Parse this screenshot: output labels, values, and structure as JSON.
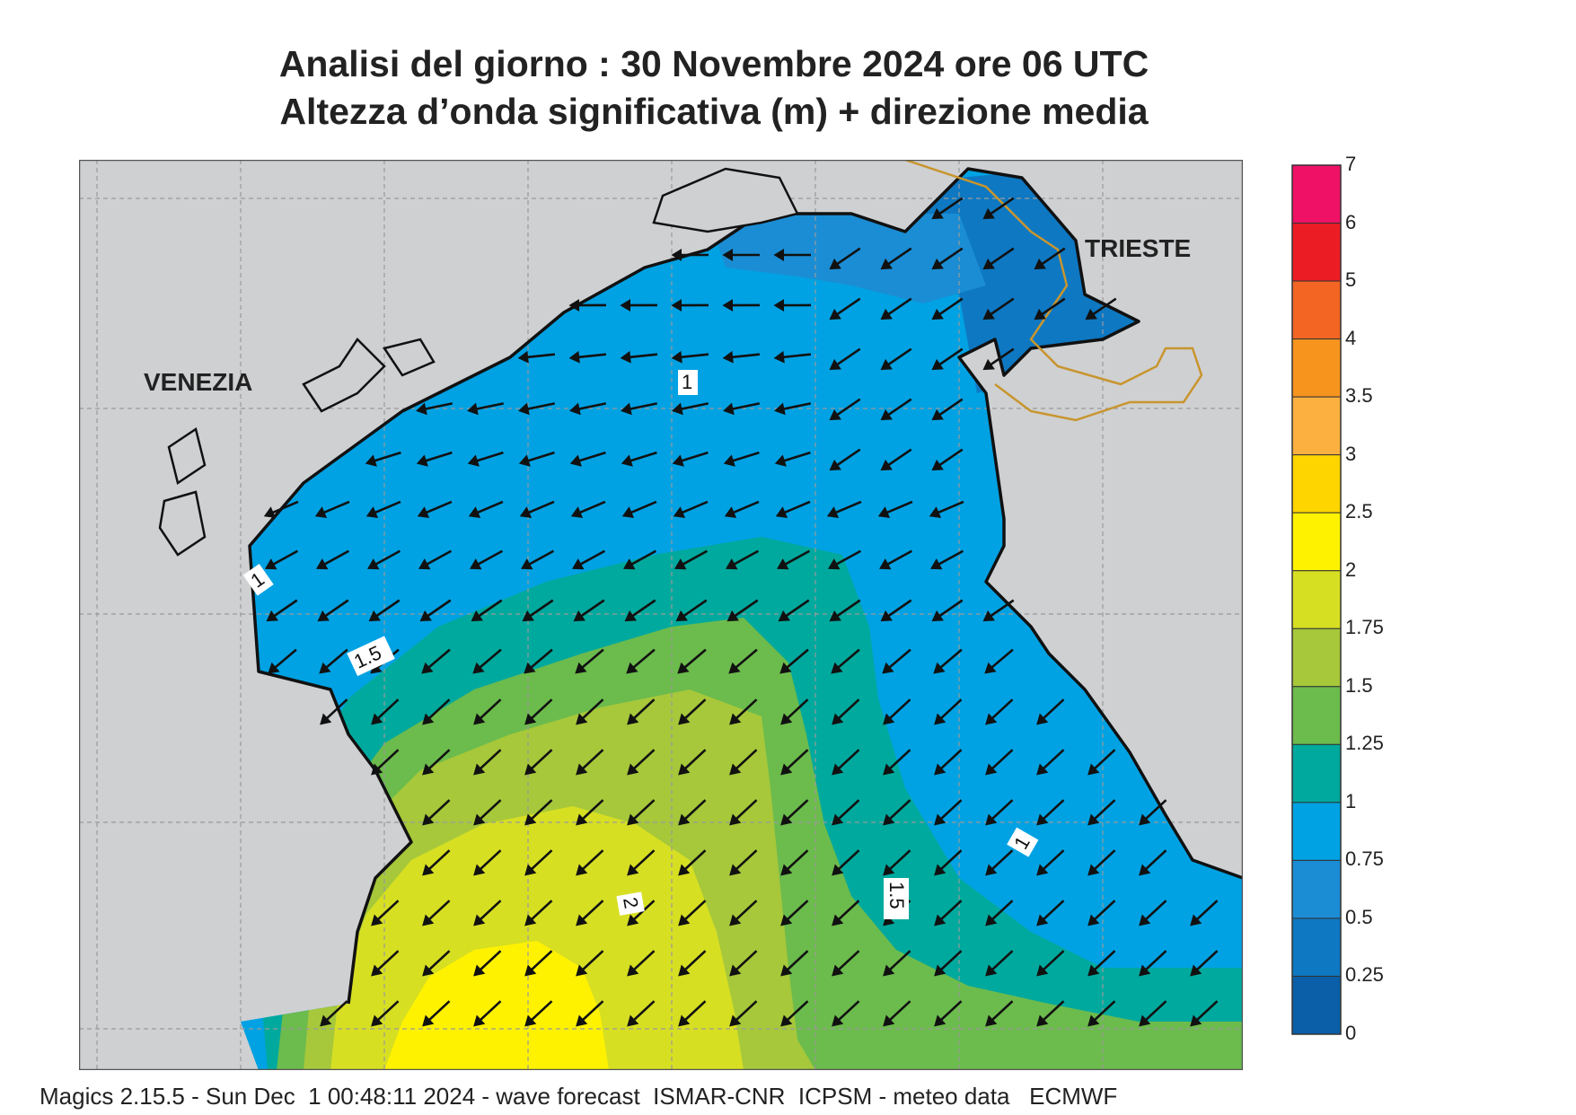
{
  "header": {
    "title_line1": "Analisi del giorno :  30 Novembre  2024   ore 06 UTC",
    "title_line2": "Altezza d’onda significativa (m) + direzione media"
  },
  "map": {
    "place_labels": {
      "venezia": "VENEZIA",
      "trieste": "TRIESTE"
    },
    "contour_labels": [
      "1",
      "1",
      "1.5",
      "1",
      "2",
      "1.5"
    ],
    "land_color": "#cfd0d2",
    "border_color": "#c8952e"
  },
  "legend": {
    "levels": [
      {
        "label": "7",
        "color": ""
      },
      {
        "label": "6",
        "color": "#ee1166"
      },
      {
        "label": "5",
        "color": "#ec1c24"
      },
      {
        "label": "4",
        "color": "#f26522"
      },
      {
        "label": "3.5",
        "color": "#f7941d"
      },
      {
        "label": "3",
        "color": "#fbb040"
      },
      {
        "label": "2.5",
        "color": "#ffd500"
      },
      {
        "label": "2",
        "color": "#fff200"
      },
      {
        "label": "1.75",
        "color": "#d7df23"
      },
      {
        "label": "1.5",
        "color": "#a6c83a"
      },
      {
        "label": "1.25",
        "color": "#6cbb4d"
      },
      {
        "label": "1",
        "color": "#00a99d"
      },
      {
        "label": "0.75",
        "color": "#00a2e3"
      },
      {
        "label": "0.5",
        "color": "#1b8dd4"
      },
      {
        "label": "0.25",
        "color": "#0e78c2"
      },
      {
        "label": "0",
        "color": "#0a5fa8"
      }
    ]
  },
  "footer": {
    "text": "Magics 2.15.5 - Sun Dec  1 00:48:11 2024 - wave forecast  ISMAR-CNR  ICPSM - meteo data   ECMWF"
  }
}
